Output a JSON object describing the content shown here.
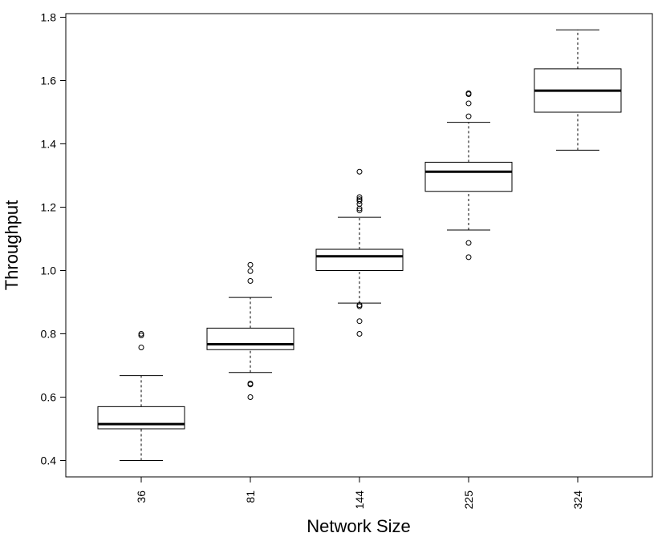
{
  "chart_data": {
    "type": "boxplot",
    "title": "",
    "xlabel": "Network Size",
    "ylabel": "Throughput",
    "ylim": [
      0.38,
      1.81
    ],
    "yticks": [
      "0.4",
      "0.6",
      "0.8",
      "1.0",
      "1.2",
      "1.4",
      "1.6",
      "1.8"
    ],
    "grid": false,
    "categories": [
      "36",
      "81",
      "144",
      "225",
      "324"
    ],
    "boxes": [
      {
        "label": "36",
        "whisker_low": 0.4,
        "q1": 0.5,
        "median": 0.515,
        "q3": 0.57,
        "whisker_high": 0.668,
        "outliers": [
          0.757,
          0.795,
          0.8
        ]
      },
      {
        "label": "81",
        "whisker_low": 0.678,
        "q1": 0.75,
        "median": 0.767,
        "q3": 0.818,
        "whisker_high": 0.915,
        "outliers": [
          0.6,
          0.64,
          0.643,
          0.967,
          0.998,
          1.018
        ]
      },
      {
        "label": "144",
        "whisker_low": 0.897,
        "q1": 1.0,
        "median": 1.045,
        "q3": 1.067,
        "whisker_high": 1.168,
        "outliers": [
          0.8,
          0.84,
          0.887,
          0.891,
          1.19,
          1.196,
          1.21,
          1.22,
          1.225,
          1.232,
          1.312
        ]
      },
      {
        "label": "225",
        "whisker_low": 1.128,
        "q1": 1.25,
        "median": 1.312,
        "q3": 1.342,
        "whisker_high": 1.468,
        "outliers": [
          1.042,
          1.087,
          1.487,
          1.528,
          1.557,
          1.56
        ]
      },
      {
        "label": "324",
        "whisker_low": 1.38,
        "q1": 1.5,
        "median": 1.568,
        "q3": 1.637,
        "whisker_high": 1.76,
        "outliers": []
      }
    ]
  }
}
